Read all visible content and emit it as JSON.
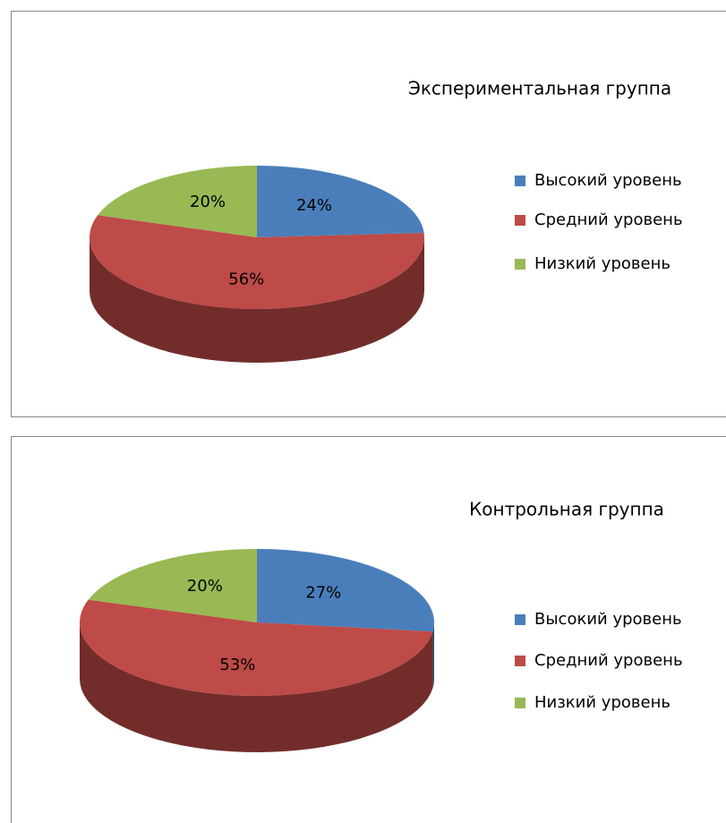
{
  "chart_data": [
    {
      "type": "pie3d",
      "title": "Экспериментальная группа",
      "categories": [
        "Высокий уровень",
        "Средний уровень",
        "Низкий уровень"
      ],
      "values": [
        24,
        56,
        20
      ],
      "value_labels": [
        "24%",
        "56%",
        "20%"
      ],
      "colors": [
        "#4a7ebb",
        "#be4b48",
        "#98b954"
      ]
    },
    {
      "type": "pie3d",
      "title": "Контрольная группа",
      "categories": [
        "Высокий уровень",
        "Средний уровень",
        "Низкий уровень"
      ],
      "values": [
        27,
        53,
        20
      ],
      "value_labels": [
        "27%",
        "53%",
        "20%"
      ],
      "colors": [
        "#4a7ebb",
        "#be4b48",
        "#98b954"
      ]
    }
  ]
}
